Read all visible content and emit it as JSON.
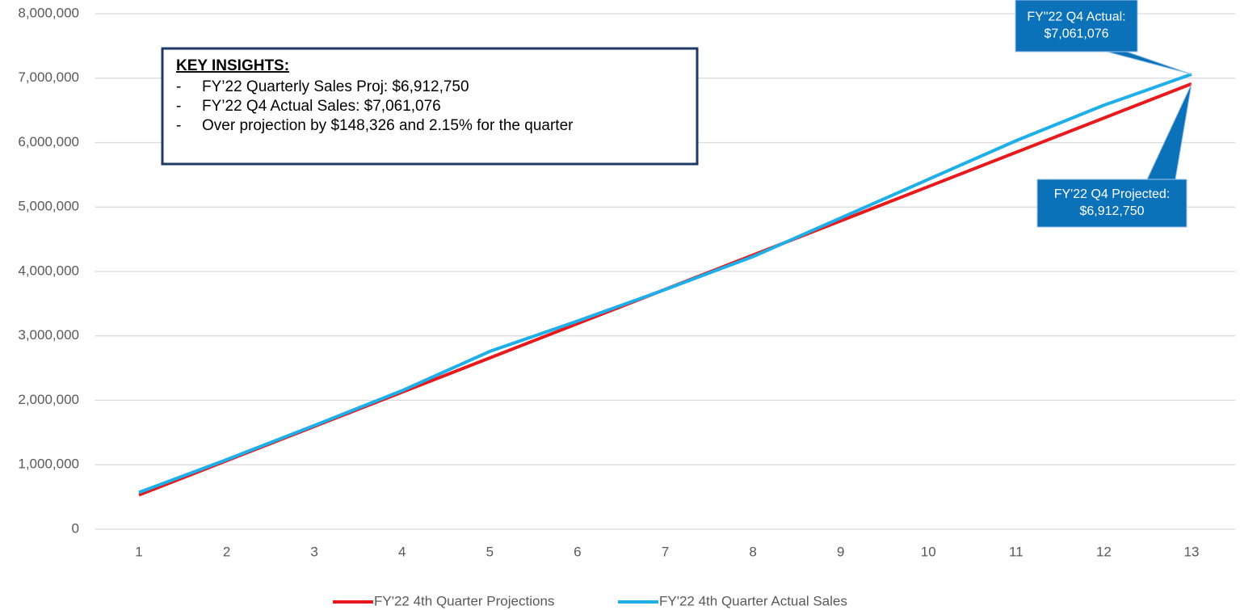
{
  "chart_data": {
    "type": "line",
    "categories": [
      "1",
      "2",
      "3",
      "4",
      "5",
      "6",
      "7",
      "8",
      "9",
      "10",
      "11",
      "12",
      "13"
    ],
    "series": [
      {
        "name": "FY'22 4th Quarter Projections",
        "color": "#e8191c",
        "values": [
          531750,
          1063500,
          1595250,
          2127000,
          2658750,
          3190500,
          3722250,
          4254000,
          4785750,
          5317500,
          5849250,
          6381000,
          6912750
        ]
      },
      {
        "name": "FY'22 4th Quarter Actual Sales",
        "color": "#1eaee8",
        "values": [
          570000,
          1080000,
          1610000,
          2150000,
          2760000,
          3230000,
          3720000,
          4230000,
          4830000,
          5430000,
          6030000,
          6580000,
          7061076
        ]
      }
    ],
    "ylim": [
      0,
      8000000
    ],
    "yticks": [
      0,
      {
        "value": 1000000,
        "label": "1,000,000"
      },
      {
        "value": 2000000,
        "label": "2,000,000"
      },
      {
        "value": 3000000,
        "label": "3,000,000"
      },
      {
        "value": 4000000,
        "label": "4,000,000"
      },
      {
        "value": 5000000,
        "label": "5,000,000"
      },
      {
        "value": 6000000,
        "label": "6,000,000"
      },
      {
        "value": 7000000,
        "label": "7,000,000"
      },
      {
        "value": 8000000,
        "label": "8,000,000"
      }
    ],
    "grid": true,
    "legend": "bottom",
    "insights": {
      "title": "KEY INSIGHTS:",
      "items": [
        "FY’22 Quarterly Sales Proj: $6,912,750",
        "FY’22 Q4 Actual Sales: $7,061,076",
        "Over projection by $148,326 and 2.15% for the quarter"
      ],
      "bullet": "-"
    },
    "callouts": [
      {
        "lines": [
          "FY\"22 Q4 Actual:",
          "$7,061,076"
        ]
      },
      {
        "lines": [
          "FY'22 Q4 Projected:",
          "$6,912,750"
        ]
      }
    ]
  }
}
